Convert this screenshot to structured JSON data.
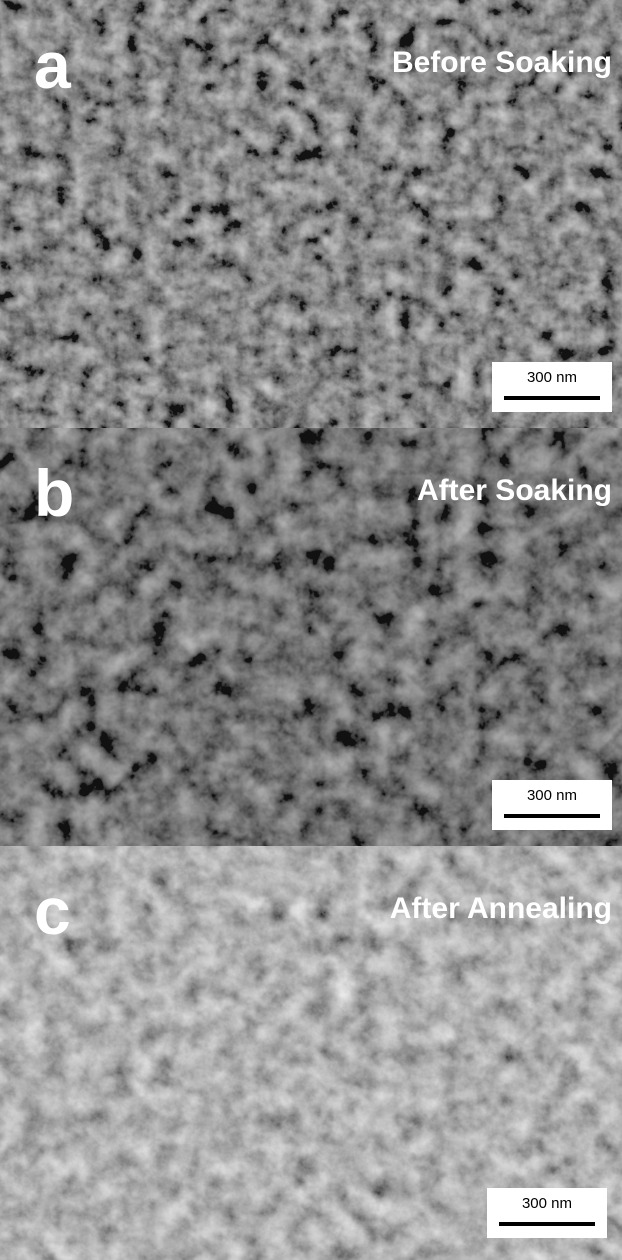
{
  "panels": [
    {
      "label": "a",
      "title": "Before Soaking",
      "scale_bar": "300 nm"
    },
    {
      "label": "b",
      "title": "After Soaking",
      "scale_bar": "300 nm"
    },
    {
      "label": "c",
      "title": "After Annealing",
      "scale_bar": "300 nm"
    }
  ]
}
